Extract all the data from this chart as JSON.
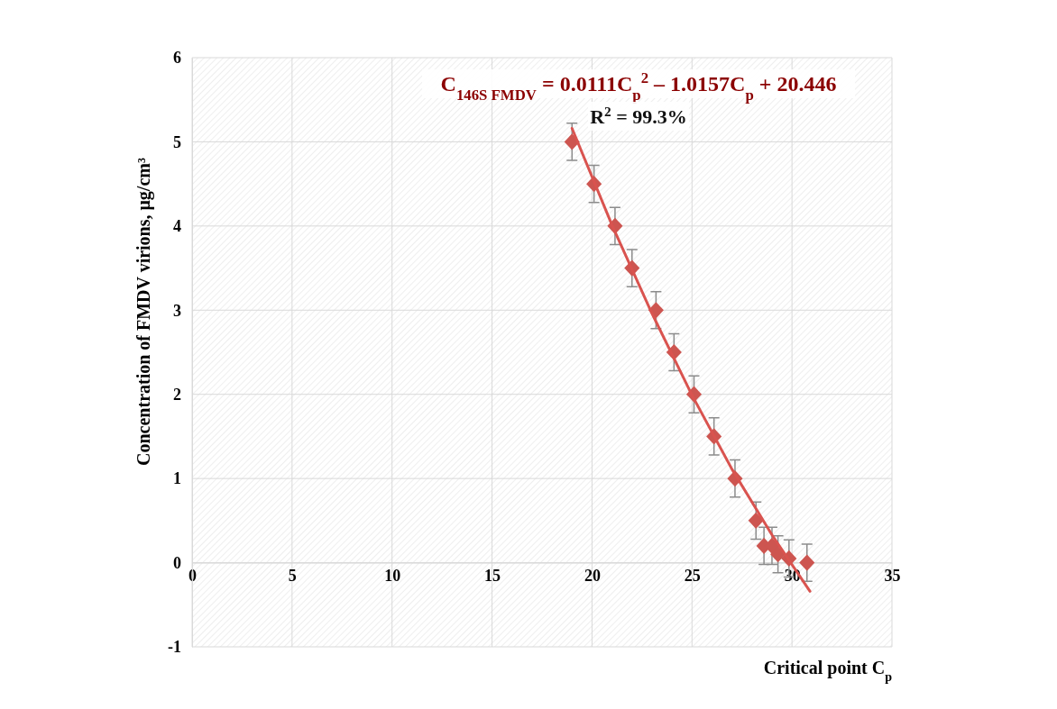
{
  "chart_data": {
    "type": "scatter",
    "xlabel": "Critical point C$_{p}$",
    "ylabel": "Concentration of FMDV virions, μg/cm³",
    "annotations": [
      "C$_{146S FMDV}$ = 0.0111C$_{p}$$^{2}$ – 1.0157C$_{p}$ + 20.446",
      "R$^{2}$ = 99.3%"
    ],
    "xlim": [
      0,
      35
    ],
    "xticks": [
      0,
      5,
      10,
      15,
      20,
      25,
      30,
      35
    ],
    "ylim": [
      -1,
      6
    ],
    "yticks": [
      -1,
      0,
      1,
      2,
      3,
      4,
      5,
      6
    ],
    "grid": true,
    "series": [
      {
        "color": "#cd5550",
        "marker": "diamond",
        "x": [
          19.0,
          20.1,
          21.15,
          22.0,
          23.2,
          24.1,
          25.1,
          26.1,
          27.15,
          28.2,
          28.6,
          29.0,
          29.3,
          29.85,
          30.75
        ],
        "values": [
          5,
          4.5,
          4,
          3.5,
          3,
          2.5,
          2,
          1.5,
          1,
          0.5,
          0.2,
          0.2,
          0.1,
          0.05,
          0
        ],
        "errors": [
          0.22,
          0.22,
          0.22,
          0.22,
          0.22,
          0.22,
          0.22,
          0.22,
          0.22,
          0.22,
          0.22,
          0.22,
          0.22,
          0.22,
          0.22
        ]
      },
      {
        "type": "line",
        "color": "#d9534f",
        "line_style": "solid",
        "x": [
          19,
          21,
          23,
          25,
          27,
          29,
          30.9
        ],
        "values": [
          5.16,
          4.01,
          2.96,
          1.99,
          1.11,
          0.33,
          -0.34
        ]
      }
    ]
  }
}
